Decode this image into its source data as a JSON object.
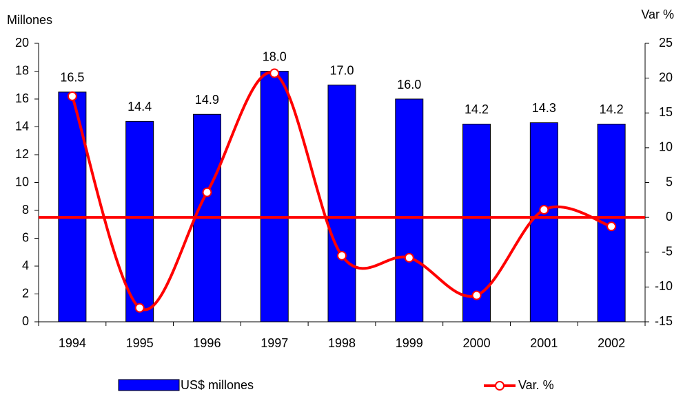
{
  "chart_data": {
    "type": "bar",
    "y_label": "Millones",
    "y2_label": "Var %",
    "categories": [
      "1994",
      "1995",
      "1996",
      "1997",
      "1998",
      "1999",
      "2000",
      "2001",
      "2002"
    ],
    "series": [
      {
        "name": "US$ millones",
        "color": "#0000ff",
        "values": [
          16.5,
          14.4,
          14.9,
          18,
          17,
          16,
          14.2,
          14.3,
          14.2
        ],
        "value_labels": [
          "16.5",
          "14.4",
          "14.9",
          "18.0",
          "17.0",
          "16.0",
          "14.2",
          "14.3",
          "14.2"
        ]
      },
      {
        "name": "Var. %",
        "type": "line",
        "axis": "y2",
        "color": "#ff0000",
        "values": [
          17.4,
          -13.0,
          3.6,
          20.7,
          -5.5,
          -5.8,
          -11.2,
          1.1,
          -1.3
        ]
      }
    ],
    "ylim": [
      0,
      20
    ],
    "yticks": [
      0,
      2,
      4,
      6,
      8,
      10,
      12,
      14,
      16,
      18,
      20
    ],
    "y2lim": [
      -15,
      25
    ],
    "y2ticks": [
      -15,
      -10,
      -5,
      0,
      5,
      10,
      15,
      20,
      25
    ],
    "grid": false
  }
}
